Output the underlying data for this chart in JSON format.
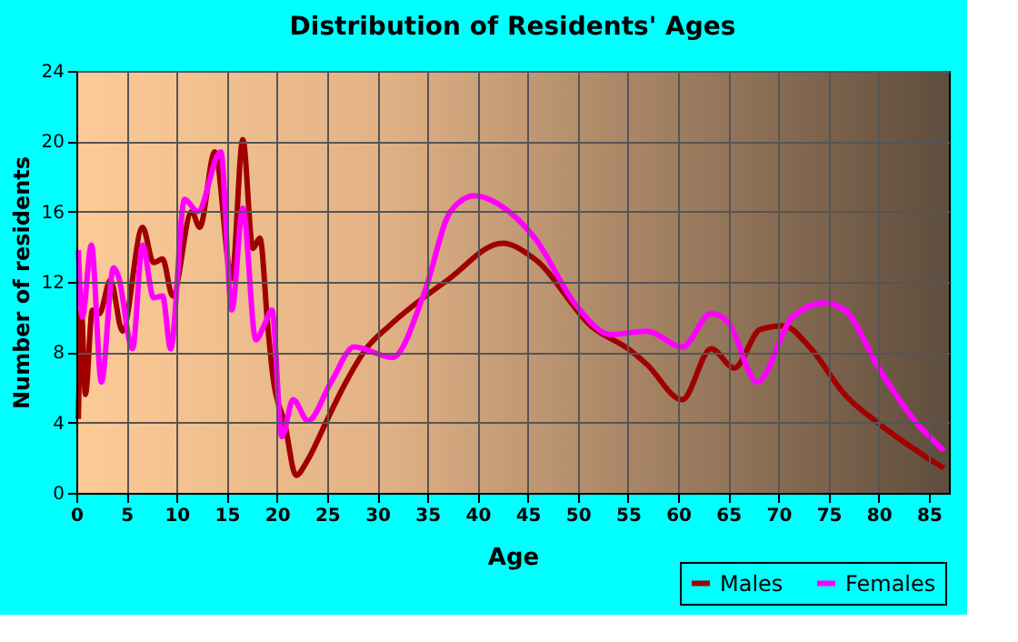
{
  "chart_data": {
    "type": "line",
    "title": "Distribution of Residents' Ages",
    "xlabel": "Age",
    "ylabel": "Number of residents",
    "xlim": [
      0,
      87
    ],
    "xticks": [
      0,
      5,
      10,
      15,
      20,
      25,
      30,
      35,
      40,
      45,
      50,
      55,
      60,
      65,
      70,
      75,
      80,
      85
    ],
    "ylim": [
      0,
      24
    ],
    "yticks": [
      0,
      4,
      8,
      12,
      16,
      20,
      24
    ],
    "grid": true,
    "legend": "bottom right",
    "line_style": "solid",
    "marker": "none",
    "series": [
      {
        "name": "Males",
        "color": "#a00000",
        "x": [
          0.2,
          0.5,
          0.9,
          1.6,
          2.3,
          3.4,
          4.6,
          6.6,
          7.7,
          8.6,
          9.6,
          11.5,
          12.3,
          13.8,
          15.5,
          16.6,
          17.6,
          18.3,
          19.1,
          19.6,
          20.8,
          21.9,
          23.1,
          24.8,
          26.6,
          28.9,
          31.2,
          37,
          42.5,
          45.7,
          51.5,
          55,
          56.9,
          60.4,
          63.3,
          65.6,
          68.2,
          70.5,
          73.1,
          76.6,
          80.1,
          83,
          86.5
        ],
        "values": [
          4.2,
          10.4,
          5.6,
          10.4,
          10.2,
          12.1,
          9.2,
          15.1,
          13.1,
          13.3,
          11.2,
          16,
          15.1,
          19.4,
          12.2,
          20.1,
          13.9,
          14.5,
          9.4,
          6.6,
          3.9,
          1.0,
          1.9,
          3.9,
          6,
          8.2,
          9.5,
          12.1,
          14.2,
          13.3,
          9.4,
          8.2,
          7.3,
          5.3,
          8.2,
          7.1,
          9.3,
          9.5,
          8.3,
          5.6,
          3.9,
          2.7,
          1.4
        ]
      },
      {
        "name": "Females",
        "color": "#ff00ff",
        "x": [
          0.2,
          0.6,
          1.5,
          2.5,
          3.7,
          4.2,
          5.6,
          6.6,
          7.7,
          8.6,
          9.4,
          10.8,
          12.1,
          14.4,
          15.5,
          16.6,
          17.9,
          18.7,
          19.5,
          20.5,
          21.6,
          23.1,
          25.4,
          27.7,
          31.5,
          34.7,
          37.3,
          39.7,
          42.9,
          45.7,
          49.8,
          53.3,
          56.9,
          60.4,
          63.3,
          65,
          67.9,
          71.4,
          74.6,
          76.6,
          80.1,
          83.6,
          86.5
        ],
        "values": [
          13.8,
          10,
          14.1,
          6.3,
          12.8,
          12.3,
          8.2,
          14.1,
          11.1,
          11.2,
          8.2,
          16.7,
          16,
          19.4,
          10.4,
          16.2,
          8.7,
          9.5,
          10.4,
          3.2,
          5.3,
          4.1,
          6.3,
          8.3,
          7.7,
          11.4,
          16,
          16.9,
          16.1,
          14.5,
          10.7,
          9,
          9.2,
          8.3,
          10.2,
          9.7,
          6.3,
          10,
          10.8,
          10.4,
          7,
          4.1,
          2.4
        ]
      }
    ]
  }
}
